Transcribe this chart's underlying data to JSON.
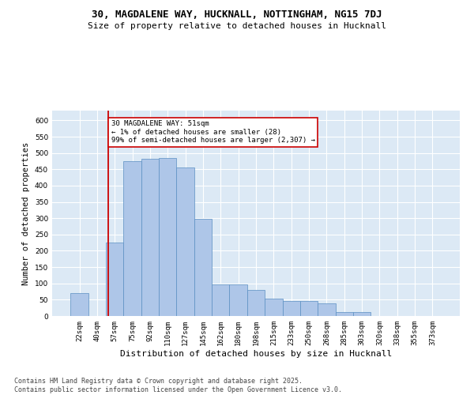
{
  "title1": "30, MAGDALENE WAY, HUCKNALL, NOTTINGHAM, NG15 7DJ",
  "title2": "Size of property relative to detached houses in Hucknall",
  "xlabel": "Distribution of detached houses by size in Hucknall",
  "ylabel": "Number of detached properties",
  "categories": [
    "22sqm",
    "40sqm",
    "57sqm",
    "75sqm",
    "92sqm",
    "110sqm",
    "127sqm",
    "145sqm",
    "162sqm",
    "180sqm",
    "198sqm",
    "215sqm",
    "233sqm",
    "250sqm",
    "268sqm",
    "285sqm",
    "303sqm",
    "320sqm",
    "338sqm",
    "355sqm",
    "373sqm"
  ],
  "values": [
    70,
    0,
    225,
    475,
    483,
    484,
    455,
    298,
    97,
    98,
    80,
    53,
    46,
    46,
    38,
    11,
    11,
    0,
    0,
    0,
    0
  ],
  "bar_color": "#aec6e8",
  "bar_edge_color": "#5a8fc2",
  "property_line_color": "#cc0000",
  "annotation_text": "30 MAGDALENE WAY: 51sqm\n← 1% of detached houses are smaller (28)\n99% of semi-detached houses are larger (2,307) →",
  "annotation_box_color": "#ffffff",
  "annotation_box_edge": "#cc0000",
  "ylim": [
    0,
    630
  ],
  "yticks": [
    0,
    50,
    100,
    150,
    200,
    250,
    300,
    350,
    400,
    450,
    500,
    550,
    600
  ],
  "background_color": "#dce9f5",
  "footer_text": "Contains HM Land Registry data © Crown copyright and database right 2025.\nContains public sector information licensed under the Open Government Licence v3.0.",
  "title1_fontsize": 9,
  "title2_fontsize": 8,
  "xlabel_fontsize": 8,
  "ylabel_fontsize": 7.5,
  "tick_fontsize": 6.5,
  "annotation_fontsize": 6.5,
  "footer_fontsize": 6
}
